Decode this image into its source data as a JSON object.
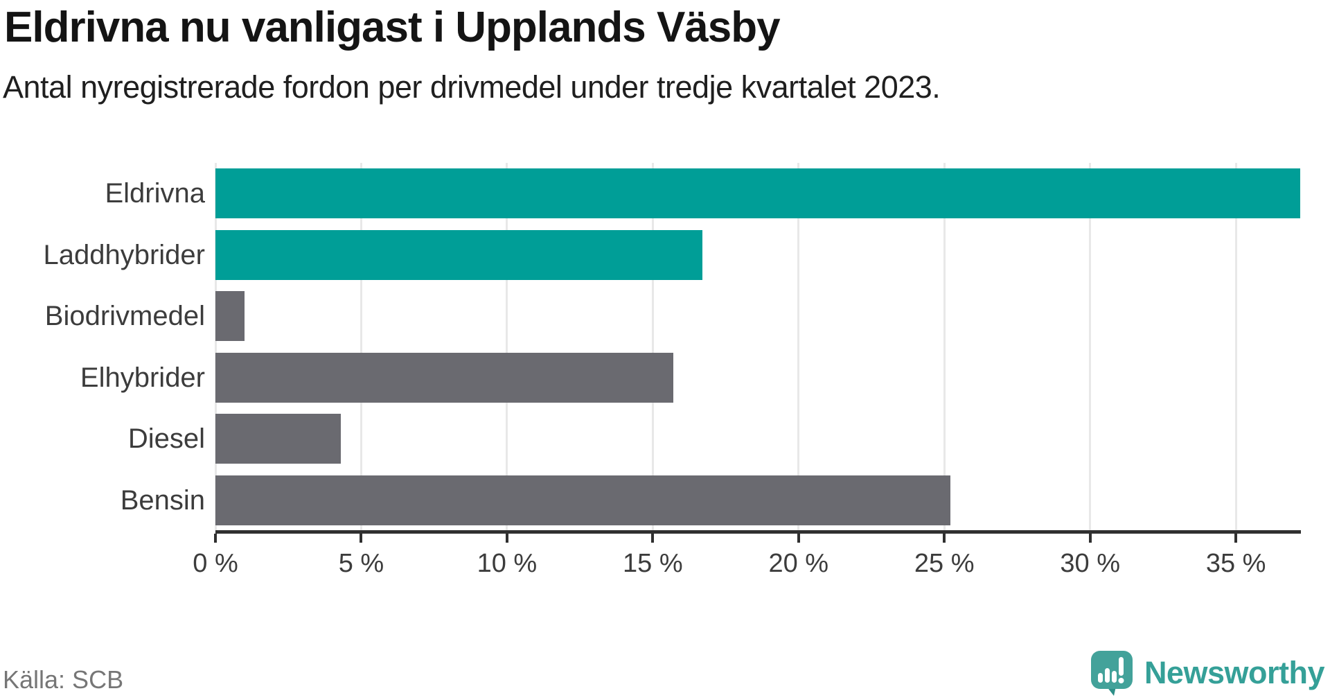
{
  "header": {
    "title": "Eldrivna nu vanligast i Upplands Väsby",
    "subtitle": "Antal nyregistrerade fordon per drivmedel under tredje kvartalet 2023."
  },
  "footer": {
    "source": "Källa: SCB",
    "brand": "Newsworthy"
  },
  "colors": {
    "teal_bar": "#009E97",
    "gray_bar": "#6A6A70",
    "gridline": "#E8E8E8",
    "axis": "#303030",
    "category_label": "#3C3C3C",
    "tick_label": "#3C3C3C",
    "title_text": "#141414",
    "source_text": "#767676",
    "logo_teal": "#43A29A",
    "logo_tail": "#2E8F88",
    "brand_text": "#35A098"
  },
  "chart_data": {
    "type": "bar",
    "orientation": "horizontal",
    "title": "Eldrivna nu vanligast i Upplands Väsby",
    "subtitle": "Antal nyregistrerade fordon per drivmedel under tredje kvartalet 2023.",
    "categories": [
      "Eldrivna",
      "Laddhybrider",
      "Biodrivmedel",
      "Elhybrider",
      "Diesel",
      "Bensin"
    ],
    "values": [
      37.2,
      16.7,
      1.0,
      15.7,
      4.3,
      25.2
    ],
    "unit": "%",
    "bar_colors": [
      "#009E97",
      "#009E97",
      "#6A6A70",
      "#6A6A70",
      "#6A6A70",
      "#6A6A70"
    ],
    "xlim": [
      0,
      37.23
    ],
    "x_ticks": [
      0,
      5,
      10,
      15,
      20,
      25,
      30,
      35
    ],
    "x_tick_labels": [
      "0 %",
      "5 %",
      "10 %",
      "15 %",
      "20 %",
      "25 %",
      "30 %",
      "35 %"
    ],
    "grid": "vertical",
    "legend": "none",
    "source": "Källa: SCB"
  }
}
